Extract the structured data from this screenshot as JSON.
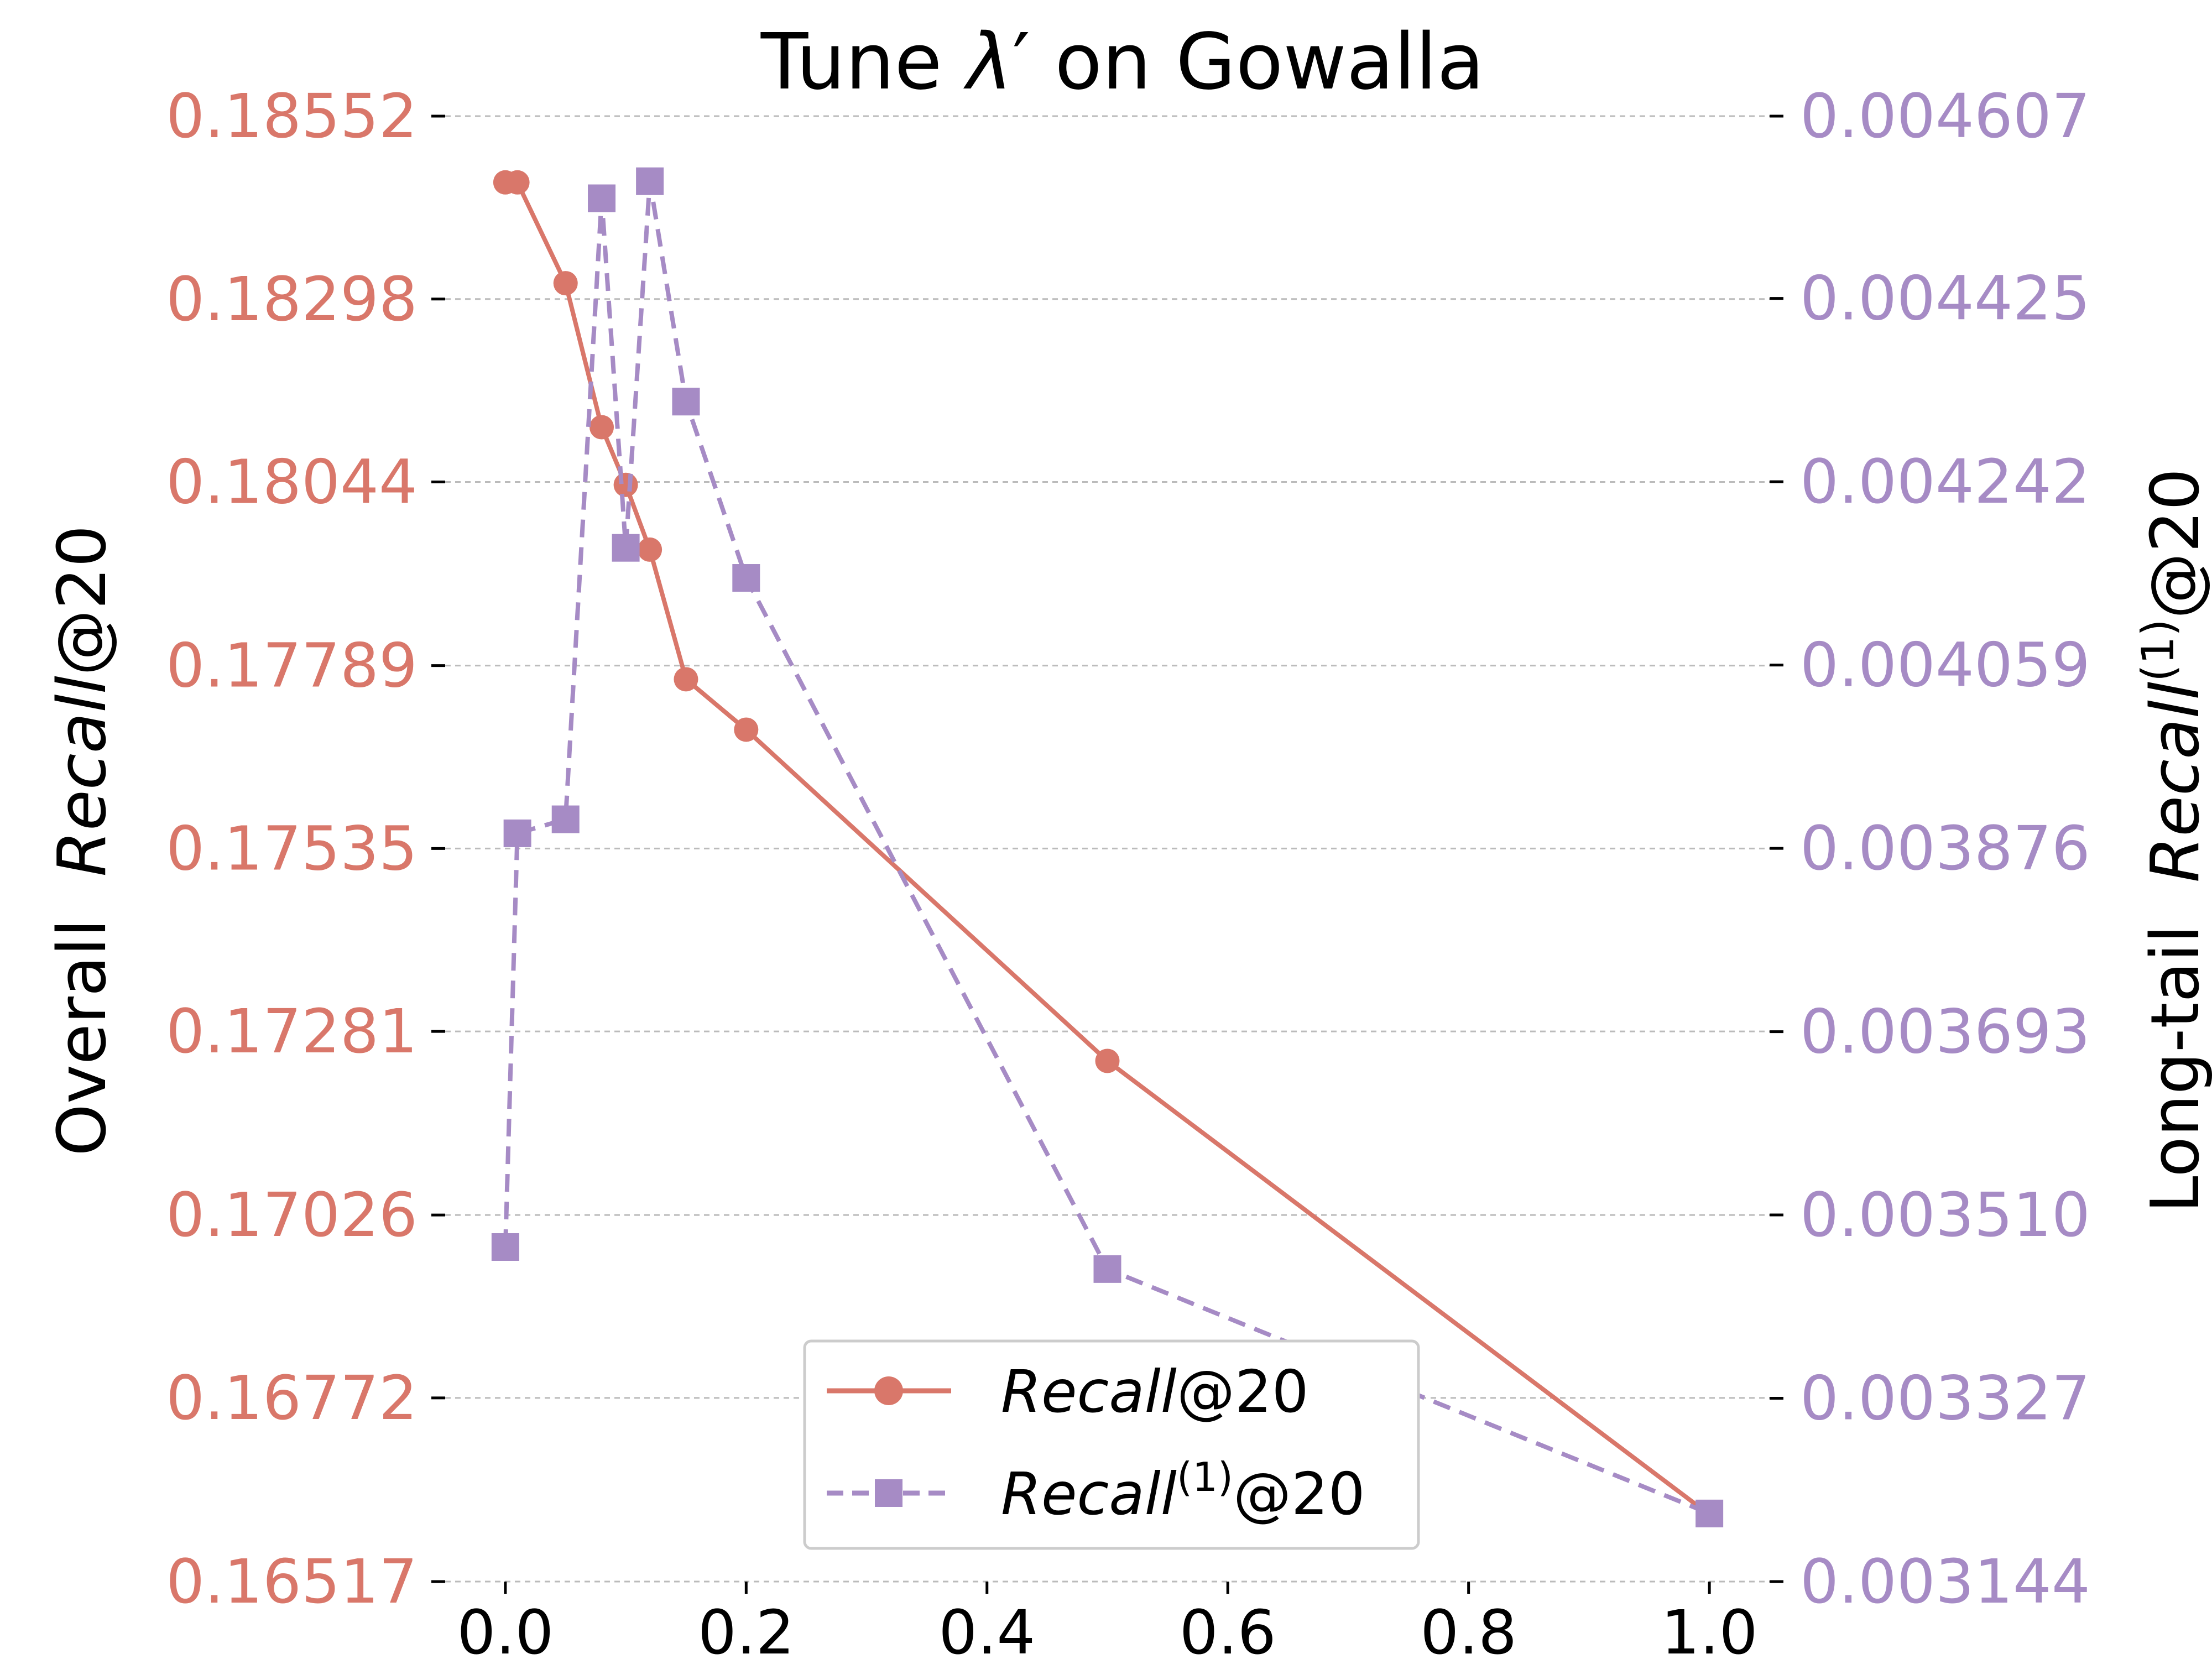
{
  "chart_data": {
    "type": "line",
    "title_parts": [
      "Tune ",
      "λ",
      "′",
      " on Gowalla"
    ],
    "x_ticks": [
      "0.0",
      "0.2",
      "0.4",
      "0.6",
      "0.8",
      "1.0"
    ],
    "x_tick_values": [
      0.0,
      0.2,
      0.4,
      0.6,
      0.8,
      1.0
    ],
    "xlim": [
      -0.05,
      1.05
    ],
    "left_axis": {
      "label_plain": "Overall  ",
      "label_italic": "Recall",
      "label_suffix": "@20",
      "ticks": [
        "0.18552",
        "0.18298",
        "0.18044",
        "0.17789",
        "0.17535",
        "0.17281",
        "0.17026",
        "0.16772",
        "0.16517"
      ],
      "tick_values": [
        0.18552,
        0.18298,
        0.18044,
        0.17789,
        0.17535,
        0.17281,
        0.17026,
        0.16772,
        0.16517
      ],
      "ylim": [
        0.16517,
        0.18552
      ],
      "color": "#d9776a"
    },
    "right_axis": {
      "label_plain": "Long-tail  ",
      "label_italic": "Recall",
      "label_sup": "(1)",
      "label_suffix": "@20",
      "ticks": [
        "0.004607",
        "0.004425",
        "0.004242",
        "0.004059",
        "0.003876",
        "0.003693",
        "0.003510",
        "0.003327",
        "0.003144"
      ],
      "tick_values": [
        0.004607,
        0.004425,
        0.004242,
        0.004059,
        0.003876,
        0.003693,
        0.00351,
        0.003327,
        0.003144
      ],
      "ylim": [
        0.003144,
        0.004607
      ],
      "color": "#a68bc5"
    },
    "series": [
      {
        "name_italic": "Recall",
        "name_sup": "",
        "name_suffix": "@20",
        "axis": "left",
        "line_style": "solid",
        "marker": "circle",
        "color": "#d9776a",
        "x": [
          0.0,
          0.01,
          0.05,
          0.08,
          0.1,
          0.12,
          0.15,
          0.2,
          0.5,
          1.0
        ],
        "y": [
          0.1846,
          0.1846,
          0.1832,
          0.1812,
          0.1804,
          0.1795,
          0.1777,
          0.177,
          0.1724,
          0.1661
        ]
      },
      {
        "name_italic": "Recall",
        "name_sup": "(1)",
        "name_suffix": "@20",
        "axis": "right",
        "line_style": "dashed",
        "marker": "square",
        "color": "#a68bc5",
        "x": [
          0.0,
          0.01,
          0.05,
          0.08,
          0.1,
          0.12,
          0.15,
          0.2,
          0.5,
          1.0
        ],
        "y": [
          0.003478,
          0.003891,
          0.003905,
          0.004525,
          0.004176,
          0.004542,
          0.004322,
          0.004146,
          0.003456,
          0.003212
        ]
      }
    ],
    "grid": "horizontal-dashed",
    "legend_position": "lower-center"
  }
}
